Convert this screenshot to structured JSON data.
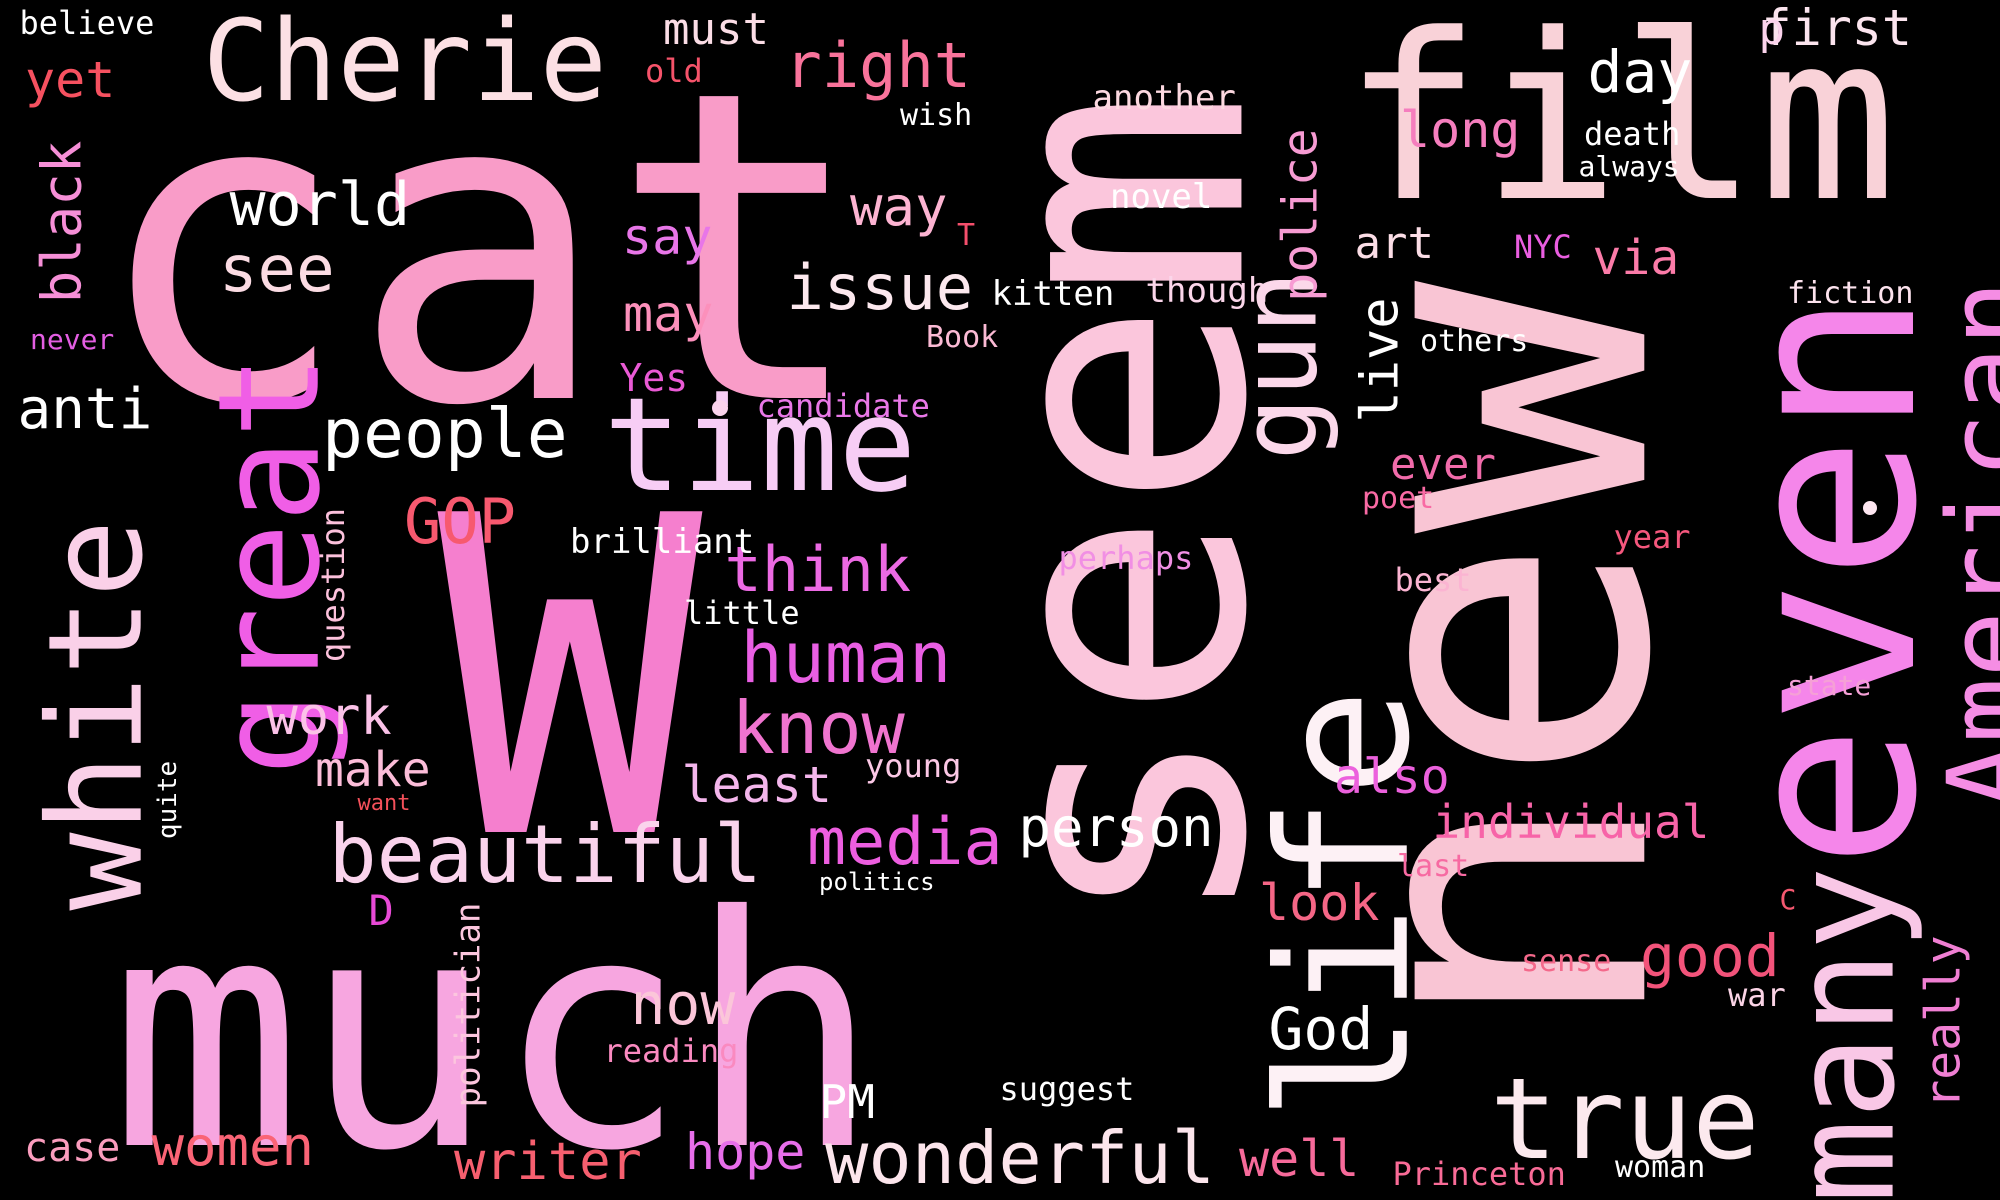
{
  "background": "#000000",
  "words": [
    {
      "text": "cat",
      "color": "#f99cc8",
      "vertical": false
    },
    {
      "text": "seem",
      "color": "#fbc6dc",
      "vertical": true
    },
    {
      "text": "new",
      "color": "#f9c5d4",
      "vertical": true
    },
    {
      "text": "film",
      "color": "#f9d2d8",
      "vertical": false
    },
    {
      "text": "much",
      "color": "#f7a6e0",
      "vertical": false
    },
    {
      "text": "W",
      "color": "#f57fce",
      "vertical": false
    },
    {
      "text": "even",
      "color": "#f586ea",
      "vertical": true
    },
    {
      "text": "life",
      "color": "#fdf1f5",
      "vertical": true
    },
    {
      "text": "time",
      "color": "#f7cdf5",
      "vertical": false
    },
    {
      "text": "Cherie",
      "color": "#fce0e4",
      "vertical": false
    },
    {
      "text": "great",
      "color": "#f05ee6",
      "vertical": true
    },
    {
      "text": "white",
      "color": "#fad0e8",
      "vertical": true
    },
    {
      "text": "many",
      "color": "#f9c7e6",
      "vertical": true
    },
    {
      "text": "American",
      "color": "#f58de4",
      "vertical": true
    },
    {
      "text": "gun",
      "color": "#fbd8ea",
      "vertical": true
    },
    {
      "text": "true",
      "color": "#fce9ee",
      "vertical": false
    },
    {
      "text": "beautiful",
      "color": "#fad3ec",
      "vertical": false
    },
    {
      "text": "wonderful",
      "color": "#fce5ec",
      "vertical": false
    },
    {
      "text": "people",
      "color": "#ffffff",
      "vertical": false
    },
    {
      "text": "human",
      "color": "#e95fe3",
      "vertical": false
    },
    {
      "text": "know",
      "color": "#ef74cf",
      "vertical": false
    },
    {
      "text": "media",
      "color": "#ed5ee0",
      "vertical": false
    },
    {
      "text": "think",
      "color": "#ec6ae3",
      "vertical": false
    },
    {
      "text": "world",
      "color": "#ffffff",
      "vertical": false
    },
    {
      "text": "see",
      "color": "#fbdbe3",
      "vertical": false
    },
    {
      "text": "issue",
      "color": "#fce8ee",
      "vertical": false
    },
    {
      "text": "right",
      "color": "#f9739b",
      "vertical": false
    },
    {
      "text": "police",
      "color": "#f79bd3",
      "vertical": true
    },
    {
      "text": "GOP",
      "color": "#f7596f",
      "vertical": false
    },
    {
      "text": "work",
      "color": "#fbc2e8",
      "vertical": false
    },
    {
      "text": "now",
      "color": "#fbc6d9",
      "vertical": false
    },
    {
      "text": "good",
      "color": "#f2537a",
      "vertical": false
    },
    {
      "text": "person",
      "color": "#ffffff",
      "vertical": false
    },
    {
      "text": "anti",
      "color": "#ffffff",
      "vertical": false
    },
    {
      "text": "black",
      "color": "#f68fd7",
      "vertical": true
    },
    {
      "text": "live",
      "color": "#ffffff",
      "vertical": true
    },
    {
      "text": "day",
      "color": "#ffffff",
      "vertical": false
    },
    {
      "text": "long",
      "color": "#f57ebe",
      "vertical": false
    },
    {
      "text": "way",
      "color": "#fdb4d2",
      "vertical": false
    },
    {
      "text": "say",
      "color": "#e876e8",
      "vertical": false
    },
    {
      "text": "may",
      "color": "#fc90bb",
      "vertical": false
    },
    {
      "text": "make",
      "color": "#fcbdd9",
      "vertical": false
    },
    {
      "text": "least",
      "color": "#f4b6ec",
      "vertical": false
    },
    {
      "text": "also",
      "color": "#ec61dd",
      "vertical": false
    },
    {
      "text": "look",
      "color": "#f56686",
      "vertical": false
    },
    {
      "text": "individual",
      "color": "#f764a8",
      "vertical": false
    },
    {
      "text": "God",
      "color": "#ffffff",
      "vertical": false
    },
    {
      "text": "writer",
      "color": "#f65f6f",
      "vertical": false
    },
    {
      "text": "women",
      "color": "#fa6476",
      "vertical": false
    },
    {
      "text": "hope",
      "color": "#e76eea",
      "vertical": false
    },
    {
      "text": "well",
      "color": "#f66a9a",
      "vertical": false
    },
    {
      "text": "really",
      "color": "#f07fd3",
      "vertical": true
    },
    {
      "text": "art",
      "color": "#fbdde6",
      "vertical": false
    },
    {
      "text": "via",
      "color": "#fb7ba8",
      "vertical": false
    },
    {
      "text": "first",
      "color": "#fbe4ee",
      "vertical": false
    },
    {
      "text": "yet",
      "color": "#f65160",
      "vertical": false
    },
    {
      "text": "must",
      "color": "#fbdde6",
      "vertical": false
    },
    {
      "text": "ever",
      "color": "#f16baa",
      "vertical": false
    },
    {
      "text": "PM",
      "color": "#ffffff",
      "vertical": false
    },
    {
      "text": "D",
      "color": "#e84ad6",
      "vertical": false
    },
    {
      "text": "brilliant",
      "color": "#ffffff",
      "vertical": false
    },
    {
      "text": "kitten",
      "color": "#ffffff",
      "vertical": false
    },
    {
      "text": "another",
      "color": "#fcd8e0",
      "vertical": false
    },
    {
      "text": "novel",
      "color": "#ffffff",
      "vertical": false
    },
    {
      "text": "death",
      "color": "#ffffff",
      "vertical": false
    },
    {
      "text": "always",
      "color": "#ffffff",
      "vertical": false
    },
    {
      "text": "question",
      "color": "#fcc1dc",
      "vertical": true
    },
    {
      "text": "politician",
      "color": "#fcc6de",
      "vertical": true
    },
    {
      "text": "little",
      "color": "#ffffff",
      "vertical": false
    },
    {
      "text": "young",
      "color": "#fcc8e6",
      "vertical": false
    },
    {
      "text": "perhaps",
      "color": "#f18fe4",
      "vertical": false
    },
    {
      "text": "others",
      "color": "#ffffff",
      "vertical": false
    },
    {
      "text": "fiction",
      "color": "#fde3ee",
      "vertical": false
    },
    {
      "text": "though",
      "color": "#fbd6ea",
      "vertical": false
    },
    {
      "text": "Yes",
      "color": "#ea5ad5",
      "vertical": false
    },
    {
      "text": "candidate",
      "color": "#e978e8",
      "vertical": false
    },
    {
      "text": "suggest",
      "color": "#ffffff",
      "vertical": false
    },
    {
      "text": "reading",
      "color": "#fa8ac0",
      "vertical": false
    },
    {
      "text": "case",
      "color": "#fb9dbe",
      "vertical": false
    },
    {
      "text": "Princeton",
      "color": "#f96b97",
      "vertical": false
    },
    {
      "text": "woman",
      "color": "#ffffff",
      "vertical": false
    },
    {
      "text": "war",
      "color": "#fbd4e6",
      "vertical": false
    },
    {
      "text": "sense",
      "color": "#f4698b",
      "vertical": false
    },
    {
      "text": "state",
      "color": "#f5a0d6",
      "vertical": false
    },
    {
      "text": "year",
      "color": "#f5577d",
      "vertical": false
    },
    {
      "text": "best",
      "color": "#fbb4d2",
      "vertical": false
    },
    {
      "text": "poet",
      "color": "#f96aa4",
      "vertical": false
    },
    {
      "text": "last",
      "color": "#f76aa2",
      "vertical": false
    },
    {
      "text": "NYC",
      "color": "#ea5ee1",
      "vertical": false
    },
    {
      "text": "Book",
      "color": "#fbbad4",
      "vertical": false
    },
    {
      "text": "wish",
      "color": "#ffffff",
      "vertical": false
    },
    {
      "text": "old",
      "color": "#f6536a",
      "vertical": false
    },
    {
      "text": "believe",
      "color": "#ffffff",
      "vertical": false
    },
    {
      "text": "never",
      "color": "#e35ee2",
      "vertical": false
    },
    {
      "text": "quite",
      "color": "#ffffff",
      "vertical": true
    },
    {
      "text": "want",
      "color": "#f3505a",
      "vertical": false
    },
    {
      "text": "politics",
      "color": "#ffffff",
      "vertical": false
    },
    {
      "text": "p",
      "color": "#fbd3ec",
      "vertical": false
    },
    {
      "text": "T",
      "color": "#f54f6c",
      "vertical": false
    },
    {
      "text": "C",
      "color": "#f55870",
      "vertical": false
    }
  ],
  "dots": [
    {
      "color": "#fbd3ec"
    },
    {
      "color": "#fde6f0"
    }
  ]
}
